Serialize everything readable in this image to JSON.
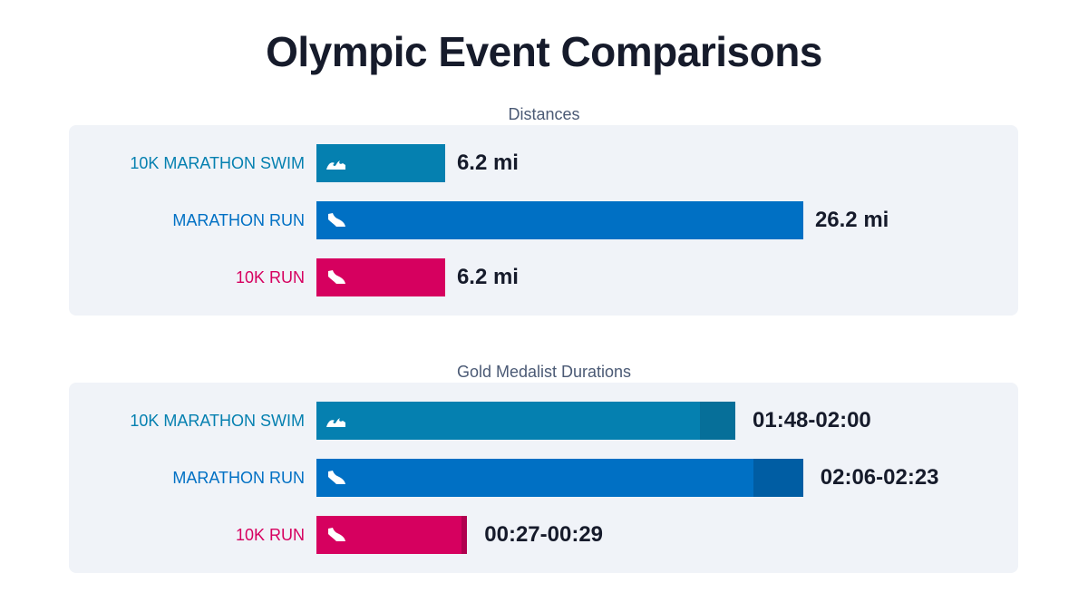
{
  "title": "Olympic Event Comparisons",
  "chart_data": [
    {
      "type": "bar",
      "title": "Distances",
      "orientation": "horizontal",
      "categories": [
        "10K MARATHON SWIM",
        "MARATHON RUN",
        "10K RUN"
      ],
      "values": [
        6.2,
        26.2,
        6.2
      ],
      "unit": "mi",
      "data_labels": [
        "6.2 mi",
        "26.2 mi",
        "6.2 mi"
      ],
      "icons": [
        "wave-icon",
        "shoe-icon",
        "shoe-icon"
      ],
      "colors": [
        "#0580b0",
        "#0070c4",
        "#d6005f"
      ]
    },
    {
      "type": "bar",
      "title": "Gold Medalist Durations",
      "orientation": "horizontal",
      "stacked_range": true,
      "categories": [
        "10K MARATHON SWIM",
        "MARATHON RUN",
        "10K RUN"
      ],
      "ranges": [
        [
          "01:48",
          "02:00"
        ],
        [
          "02:06",
          "02:23"
        ],
        [
          "00:27",
          "00:29"
        ]
      ],
      "data_labels": [
        "01:48-02:00",
        "02:06-02:23",
        "00:27-00:29"
      ],
      "icons": [
        "wave-icon",
        "shoe-icon",
        "shoe-icon"
      ],
      "colors": [
        "#0580b0",
        "#0070c4",
        "#d6005f"
      ],
      "range_colors": [
        "#066f99",
        "#005da3",
        "#b0004f"
      ]
    }
  ]
}
